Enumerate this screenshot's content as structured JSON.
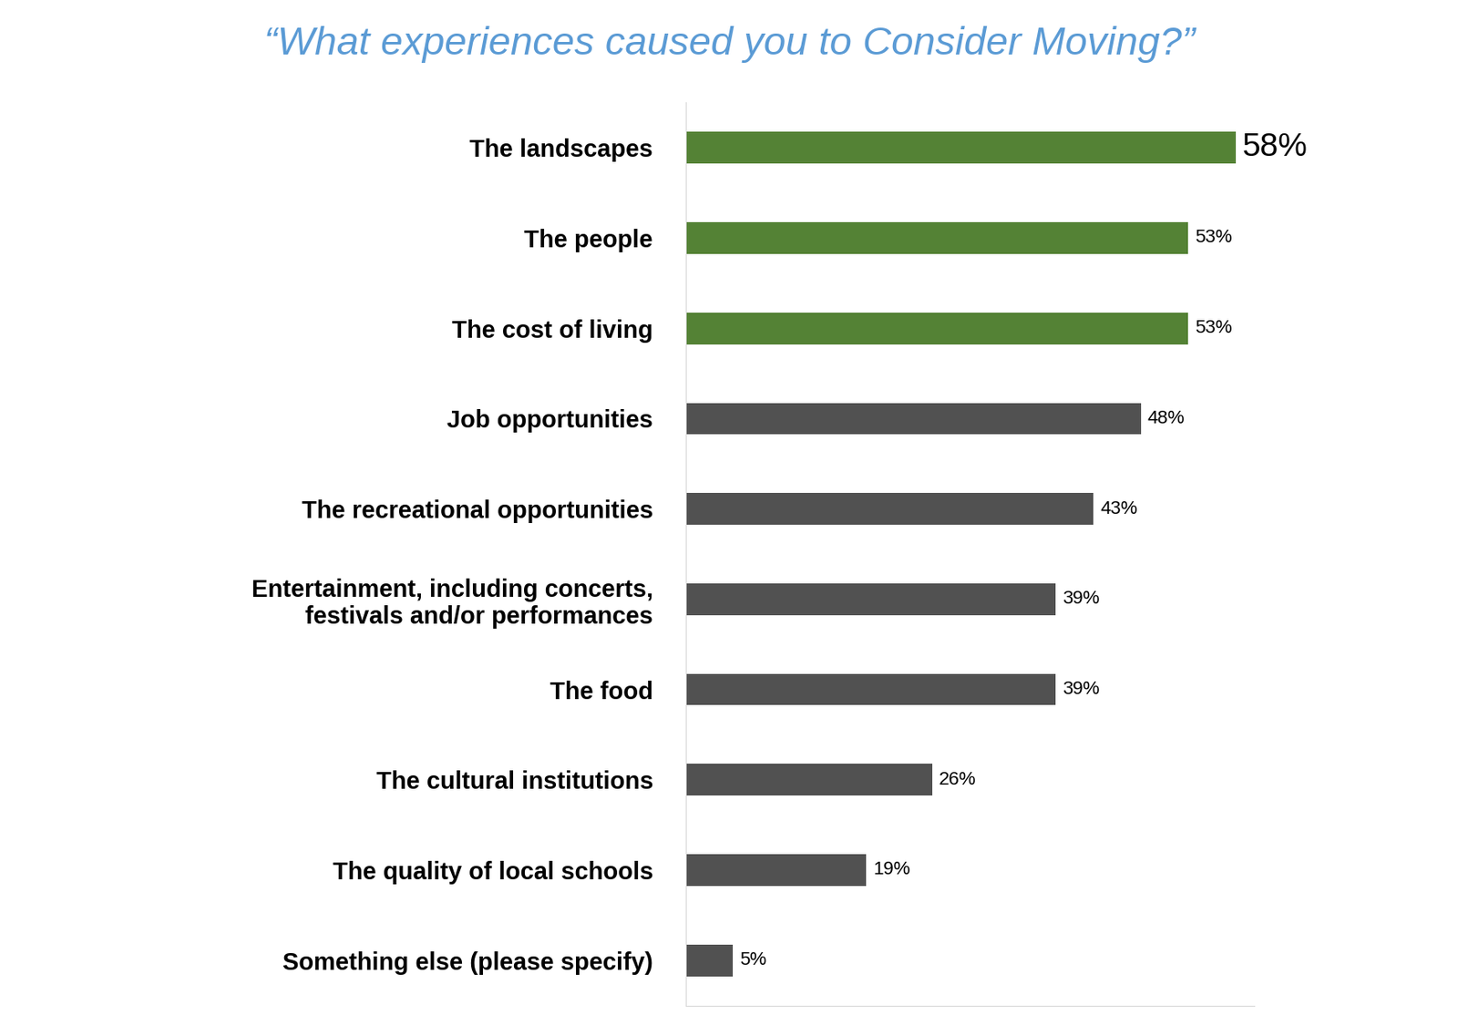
{
  "chart_data": {
    "type": "bar",
    "orientation": "horizontal",
    "title": "“What experiences caused you to Consider Moving?”",
    "categories": [
      "The landscapes",
      "The people",
      "The cost of living",
      "Job opportunities",
      "The recreational opportunities",
      "Entertainment, including concerts,\nfestivals and/or performances",
      "The food",
      "The cultural institutions",
      "The quality of local schools",
      "Something else (please specify)"
    ],
    "values": [
      58,
      53,
      53,
      48,
      43,
      39,
      39,
      26,
      19,
      5
    ],
    "value_labels": [
      "58%",
      "53%",
      "53%",
      "48%",
      "43%",
      "39%",
      "39%",
      "26%",
      "19%",
      "5%"
    ],
    "colors": [
      "#548235",
      "#548235",
      "#548235",
      "#515151",
      "#515151",
      "#515151",
      "#515151",
      "#515151",
      "#515151",
      "#515151"
    ],
    "xlim": [
      0,
      60
    ],
    "data_labels": true,
    "tick_labels": "y",
    "grid": false
  }
}
